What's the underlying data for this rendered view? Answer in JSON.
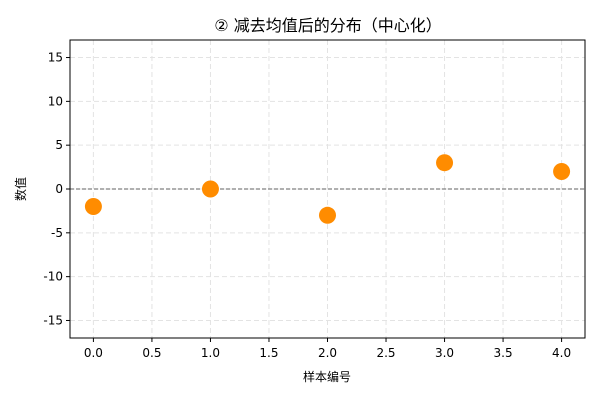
{
  "chart_data": {
    "type": "scatter",
    "title": "② 减去均值后的分布（中心化）",
    "xlabel": "样本编号",
    "ylabel": "数值",
    "xlim": [
      -0.2,
      4.2
    ],
    "ylim": [
      -17,
      17
    ],
    "xticks": [
      0.0,
      0.5,
      1.0,
      1.5,
      2.0,
      2.5,
      3.0,
      3.5,
      4.0
    ],
    "xtick_labels": [
      "0.0",
      "0.5",
      "1.0",
      "1.5",
      "2.0",
      "2.5",
      "3.0",
      "3.5",
      "4.0"
    ],
    "yticks": [
      15,
      10,
      5,
      0,
      -5,
      -10,
      -15
    ],
    "ytick_labels": [
      "15",
      "10",
      "5",
      "0",
      "-5",
      "-10",
      "-15"
    ],
    "grid": true,
    "reference_line": {
      "y": 0,
      "style": "dashed",
      "color": "#808080"
    },
    "points": [
      {
        "x": 0,
        "y": -2
      },
      {
        "x": 1,
        "y": 0
      },
      {
        "x": 2,
        "y": -3
      },
      {
        "x": 3,
        "y": 3
      },
      {
        "x": 4,
        "y": 2
      }
    ],
    "marker_color": "#ff8c00"
  }
}
